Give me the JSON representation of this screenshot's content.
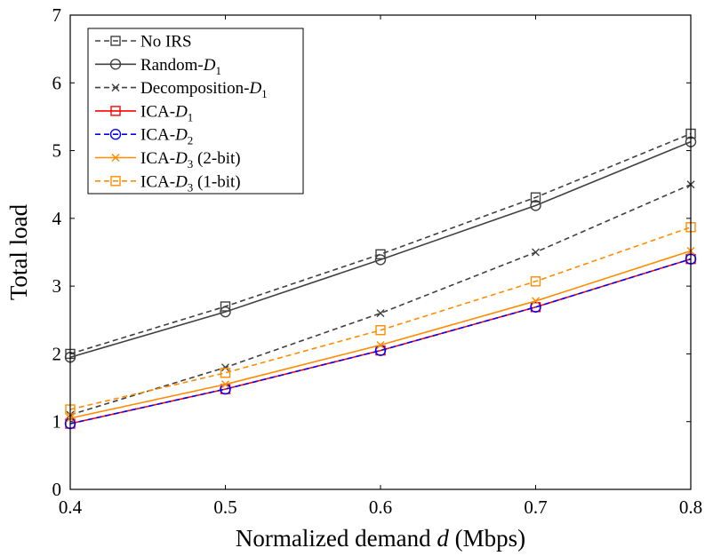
{
  "chart_data": {
    "type": "line",
    "title": "",
    "xlabel": "Normalized demand d (Mbps)",
    "xlabel_parts": {
      "prefix": "Normalized demand ",
      "var": "d",
      "suffix": " (Mbps)"
    },
    "ylabel": "Total load",
    "x": [
      0.4,
      0.5,
      0.6,
      0.7,
      0.8
    ],
    "x_tick_labels": [
      "0.4",
      "0.5",
      "0.6",
      "0.7",
      "0.8"
    ],
    "y_tick_labels": [
      "0",
      "1",
      "2",
      "3",
      "4",
      "5",
      "6",
      "7"
    ],
    "xlim": [
      0.4,
      0.8
    ],
    "ylim": [
      0,
      7
    ],
    "grid": false,
    "legend_position": "top-left",
    "series": [
      {
        "name": "No IRS",
        "legend_base": "No IRS",
        "legend_sub": "",
        "legend_suffix": "",
        "values": [
          2.0,
          2.7,
          3.47,
          4.31,
          5.25
        ],
        "color": "#404040",
        "dashed": true,
        "marker": "square"
      },
      {
        "name": "Random-D1",
        "legend_base": "Random-",
        "legend_sub": "1",
        "legend_suffix": "",
        "values": [
          1.95,
          2.62,
          3.39,
          4.19,
          5.13
        ],
        "color": "#404040",
        "dashed": false,
        "marker": "circle"
      },
      {
        "name": "Decomposition-D1",
        "legend_base": "Decomposition-",
        "legend_sub": "1",
        "legend_suffix": "",
        "values": [
          1.1,
          1.8,
          2.6,
          3.5,
          4.5
        ],
        "color": "#404040",
        "dashed": true,
        "marker": "x"
      },
      {
        "name": "ICA-D1",
        "legend_base": "ICA-",
        "legend_sub": "1",
        "legend_suffix": "",
        "values": [
          0.97,
          1.48,
          2.05,
          2.69,
          3.4
        ],
        "color": "#ff0000",
        "dashed": false,
        "marker": "square"
      },
      {
        "name": "ICA-D2",
        "legend_base": "ICA-",
        "legend_sub": "2",
        "legend_suffix": "",
        "values": [
          0.97,
          1.48,
          2.05,
          2.69,
          3.4
        ],
        "color": "#0000ff",
        "dashed": true,
        "marker": "circle"
      },
      {
        "name": "ICA-D3 (2-bit)",
        "legend_base": "ICA-",
        "legend_sub": "3",
        "legend_suffix": " (2-bit)",
        "values": [
          1.05,
          1.55,
          2.13,
          2.78,
          3.52
        ],
        "color": "#ff8c00",
        "dashed": false,
        "marker": "x"
      },
      {
        "name": "ICA-D3 (1-bit)",
        "legend_base": "ICA-",
        "legend_sub": "3",
        "legend_suffix": " (1-bit)",
        "values": [
          1.18,
          1.72,
          2.35,
          3.07,
          3.87
        ],
        "color": "#ff8c00",
        "dashed": true,
        "marker": "square"
      }
    ]
  }
}
